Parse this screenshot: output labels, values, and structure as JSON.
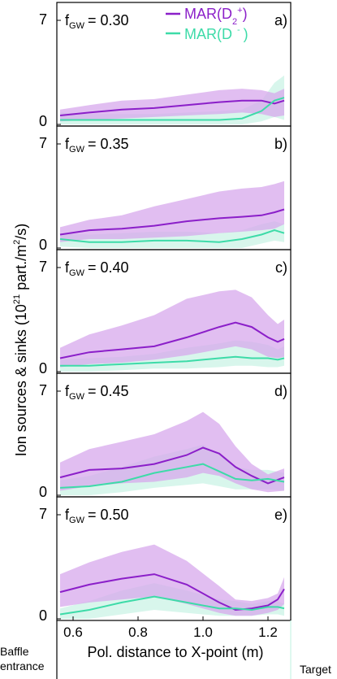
{
  "colors": {
    "mar_d2": "#8B1FC9",
    "mar_d2_band": "#D7A8EC",
    "mar_dm": "#3DDBA8",
    "mar_dm_band": "#C7F2E4",
    "overlap": "#B9C5E6"
  },
  "ylabel": "Ion sources & sinks (10",
  "ylabel_exp": "21",
  "ylabel_tail": " part./m",
  "ylabel_exp2": "2",
  "ylabel_end": "/s)",
  "xlabel": "Pol. distance to X-point (m)",
  "left_corner": [
    "Baffle",
    "entrance"
  ],
  "right_corner": "Target",
  "legend": {
    "d2": {
      "main": "MAR(D",
      "sub": "2",
      "sup": "+",
      "end": ")"
    },
    "dm": {
      "main": "MAR(D",
      "sup": "-",
      "end": ")"
    }
  },
  "chart_data": [
    {
      "type": "line",
      "panel": "a)",
      "f_sub": "GW",
      "f_label": "f",
      "f_value": "= 0.30",
      "yticks": [
        "7",
        "0"
      ],
      "ylim": [
        0,
        7
      ],
      "xlim": [
        0.55,
        1.27
      ],
      "xticks": [
        "0.6",
        "0.8",
        "1.0",
        "1.2"
      ],
      "x": [
        0.56,
        0.65,
        0.75,
        0.85,
        0.95,
        1.05,
        1.12,
        1.18,
        1.22,
        1.25
      ],
      "series": [
        {
          "name": "MAR(D2+)",
          "values": [
            0.6,
            0.8,
            1.0,
            1.1,
            1.3,
            1.5,
            1.6,
            1.6,
            1.4,
            1.6
          ],
          "lower": [
            0.2,
            0.3,
            0.4,
            0.5,
            0.6,
            0.7,
            0.8,
            0.7,
            0.5,
            0.6
          ],
          "upper": [
            1.0,
            1.3,
            1.6,
            1.7,
            2.0,
            2.3,
            2.4,
            2.3,
            2.1,
            2.4
          ]
        },
        {
          "name": "MAR(D-)",
          "values": [
            0.3,
            0.3,
            0.3,
            0.3,
            0.3,
            0.3,
            0.4,
            0.9,
            1.6,
            1.8
          ],
          "lower": [
            0.0,
            0.0,
            0.0,
            0.0,
            0.0,
            0.0,
            0.0,
            0.2,
            0.5,
            0.3
          ],
          "upper": [
            0.8,
            0.7,
            0.7,
            0.7,
            0.8,
            0.9,
            1.0,
            1.6,
            2.8,
            3.3
          ]
        }
      ]
    },
    {
      "type": "line",
      "panel": "b)",
      "f_sub": "GW",
      "f_label": "f",
      "f_value": "= 0.35",
      "yticks": [
        "7",
        "0"
      ],
      "ylim": [
        0,
        7
      ],
      "xlim": [
        0.55,
        1.27
      ],
      "xticks": [
        "0.6",
        "0.8",
        "1.0",
        "1.2"
      ],
      "x": [
        0.56,
        0.65,
        0.75,
        0.85,
        0.95,
        1.05,
        1.12,
        1.18,
        1.22,
        1.25
      ],
      "series": [
        {
          "name": "MAR(D2+)",
          "values": [
            0.9,
            1.2,
            1.3,
            1.5,
            1.8,
            2.0,
            2.1,
            2.2,
            2.4,
            2.6
          ],
          "lower": [
            0.4,
            0.6,
            0.6,
            0.7,
            0.8,
            1.0,
            1.1,
            1.2,
            1.3,
            1.6
          ],
          "upper": [
            1.4,
            1.9,
            2.2,
            2.8,
            3.3,
            3.8,
            4.0,
            4.1,
            4.3,
            4.5
          ]
        },
        {
          "name": "MAR(D-)",
          "values": [
            0.6,
            0.4,
            0.4,
            0.5,
            0.5,
            0.4,
            0.6,
            0.9,
            1.2,
            1.0
          ],
          "lower": [
            0.1,
            0.0,
            0.0,
            0.0,
            0.0,
            0.0,
            0.0,
            0.3,
            0.5,
            0.4
          ],
          "upper": [
            1.0,
            0.9,
            1.0,
            1.1,
            1.1,
            1.0,
            1.2,
            1.6,
            1.8,
            1.6
          ]
        }
      ]
    },
    {
      "type": "line",
      "panel": "c)",
      "f_sub": "GW",
      "f_label": "f",
      "f_value": "= 0.40",
      "yticks": [
        "7",
        "0"
      ],
      "ylim": [
        0,
        7
      ],
      "xlim": [
        0.55,
        1.27
      ],
      "xticks": [
        "0.6",
        "0.8",
        "1.0",
        "1.2"
      ],
      "x": [
        0.56,
        0.65,
        0.75,
        0.85,
        0.95,
        1.05,
        1.1,
        1.15,
        1.2,
        1.23,
        1.25
      ],
      "series": [
        {
          "name": "MAR(D2+)",
          "values": [
            0.9,
            1.3,
            1.5,
            1.7,
            2.3,
            3.0,
            3.3,
            3.0,
            2.3,
            2.0,
            2.2
          ],
          "lower": [
            0.3,
            0.5,
            0.6,
            0.8,
            1.1,
            1.5,
            1.7,
            1.5,
            1.0,
            0.9,
            1.0
          ],
          "upper": [
            1.6,
            2.5,
            3.1,
            3.8,
            4.9,
            5.4,
            5.5,
            5.0,
            3.8,
            3.2,
            3.5
          ]
        },
        {
          "name": "MAR(D-)",
          "values": [
            0.4,
            0.4,
            0.5,
            0.6,
            0.7,
            0.9,
            1.0,
            0.9,
            0.9,
            0.8,
            0.9
          ],
          "lower": [
            0.0,
            0.0,
            0.1,
            0.2,
            0.2,
            0.3,
            0.4,
            0.4,
            0.3,
            0.3,
            0.4
          ],
          "upper": [
            0.8,
            0.9,
            1.0,
            1.2,
            1.6,
            1.9,
            2.1,
            2.0,
            1.8,
            1.5,
            1.7
          ]
        }
      ]
    },
    {
      "type": "line",
      "panel": "d)",
      "f_sub": "GW",
      "f_label": "f",
      "f_value": "= 0.45",
      "yticks": [
        "7",
        "0"
      ],
      "ylim": [
        0,
        7
      ],
      "xlim": [
        0.55,
        1.27
      ],
      "xticks": [
        "0.6",
        "0.8",
        "1.0",
        "1.2"
      ],
      "x": [
        0.56,
        0.65,
        0.75,
        0.85,
        0.95,
        1.0,
        1.05,
        1.1,
        1.15,
        1.2,
        1.25
      ],
      "series": [
        {
          "name": "MAR(D2+)",
          "values": [
            1.2,
            1.7,
            1.8,
            2.1,
            2.7,
            3.2,
            2.8,
            1.9,
            1.3,
            0.8,
            1.2
          ],
          "lower": [
            0.3,
            0.6,
            0.8,
            0.9,
            1.2,
            1.5,
            1.3,
            0.8,
            0.4,
            0.2,
            0.3
          ],
          "upper": [
            2.2,
            3.1,
            3.6,
            4.1,
            5.0,
            5.6,
            4.8,
            3.3,
            2.1,
            1.4,
            1.8
          ]
        },
        {
          "name": "MAR(D-)",
          "values": [
            0.5,
            0.6,
            0.9,
            1.5,
            1.9,
            2.1,
            1.6,
            1.1,
            1.0,
            1.1,
            0.9
          ],
          "lower": [
            0.0,
            0.0,
            0.2,
            0.5,
            0.7,
            0.8,
            0.6,
            0.4,
            0.4,
            0.4,
            0.3
          ],
          "upper": [
            1.0,
            1.3,
            1.9,
            2.6,
            3.1,
            3.4,
            2.7,
            1.9,
            1.7,
            1.7,
            1.5
          ]
        }
      ]
    },
    {
      "type": "line",
      "panel": "e)",
      "f_sub": "GW",
      "f_label": "f",
      "f_value": "= 0.50",
      "yticks": [
        "7",
        "0"
      ],
      "ylim": [
        0,
        7
      ],
      "xlim": [
        0.55,
        1.27
      ],
      "xticks": [
        "0.6",
        "0.8",
        "1.0",
        "1.2"
      ],
      "x": [
        0.56,
        0.65,
        0.75,
        0.85,
        0.95,
        1.05,
        1.1,
        1.15,
        1.2,
        1.23,
        1.25
      ],
      "series": [
        {
          "name": "MAR(D2+)",
          "values": [
            1.8,
            2.3,
            2.7,
            3.0,
            2.3,
            1.1,
            0.6,
            0.7,
            0.9,
            1.3,
            2.0
          ],
          "lower": [
            0.8,
            1.1,
            1.3,
            1.5,
            1.0,
            0.4,
            0.2,
            0.2,
            0.4,
            0.6,
            1.0
          ],
          "upper": [
            3.0,
            3.8,
            4.5,
            5.0,
            3.9,
            2.2,
            1.3,
            1.2,
            1.4,
            1.7,
            2.8
          ]
        },
        {
          "name": "MAR(D-)",
          "values": [
            0.3,
            0.6,
            1.1,
            1.5,
            1.1,
            0.7,
            0.7,
            0.6,
            0.8,
            0.8,
            0.7
          ],
          "lower": [
            0.0,
            0.0,
            0.3,
            0.6,
            0.4,
            0.2,
            0.2,
            0.2,
            0.3,
            0.3,
            0.2
          ],
          "upper": [
            0.7,
            1.2,
            1.9,
            2.4,
            1.9,
            1.3,
            1.2,
            1.0,
            1.2,
            1.2,
            1.0
          ]
        }
      ]
    }
  ]
}
